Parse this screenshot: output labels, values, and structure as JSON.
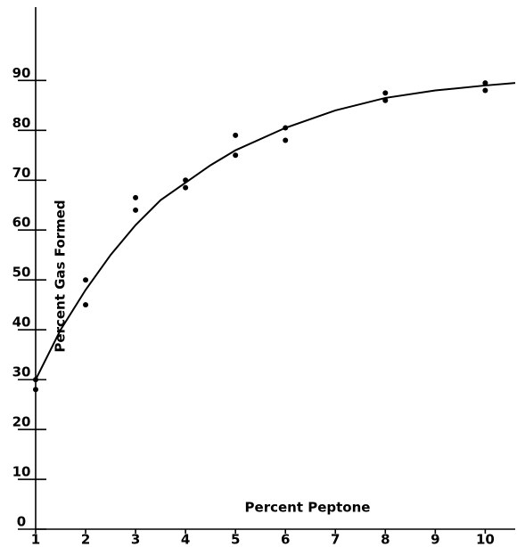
{
  "chart_data": {
    "type": "scatter",
    "x_label": "Percent Peptone",
    "y_label": "Percent Gas Formed",
    "x": [
      1,
      1,
      2,
      2,
      3,
      3,
      4,
      4,
      5,
      5,
      6,
      6,
      8,
      8,
      10,
      10
    ],
    "values": [
      30,
      28,
      50,
      45,
      66.5,
      64,
      70,
      68.5,
      79,
      75,
      80.5,
      78,
      87.5,
      86,
      89.5,
      88
    ],
    "color": "#000000",
    "curve": {
      "x": [
        1,
        1.5,
        2,
        2.5,
        3,
        3.5,
        4,
        4.5,
        5,
        6,
        7,
        8,
        9,
        10,
        10.6
      ],
      "values": [
        30,
        40,
        48,
        55,
        61,
        66,
        69.5,
        73,
        76,
        80.5,
        84,
        86.5,
        88,
        89,
        89.5
      ]
    },
    "xlim": [
      1,
      10.6
    ],
    "ylim": [
      0,
      104
    ],
    "xticks": [
      1,
      2,
      3,
      4,
      5,
      6,
      7,
      8,
      9,
      10
    ],
    "yticks": [
      0,
      10,
      20,
      30,
      40,
      50,
      60,
      70,
      80,
      90
    ]
  }
}
